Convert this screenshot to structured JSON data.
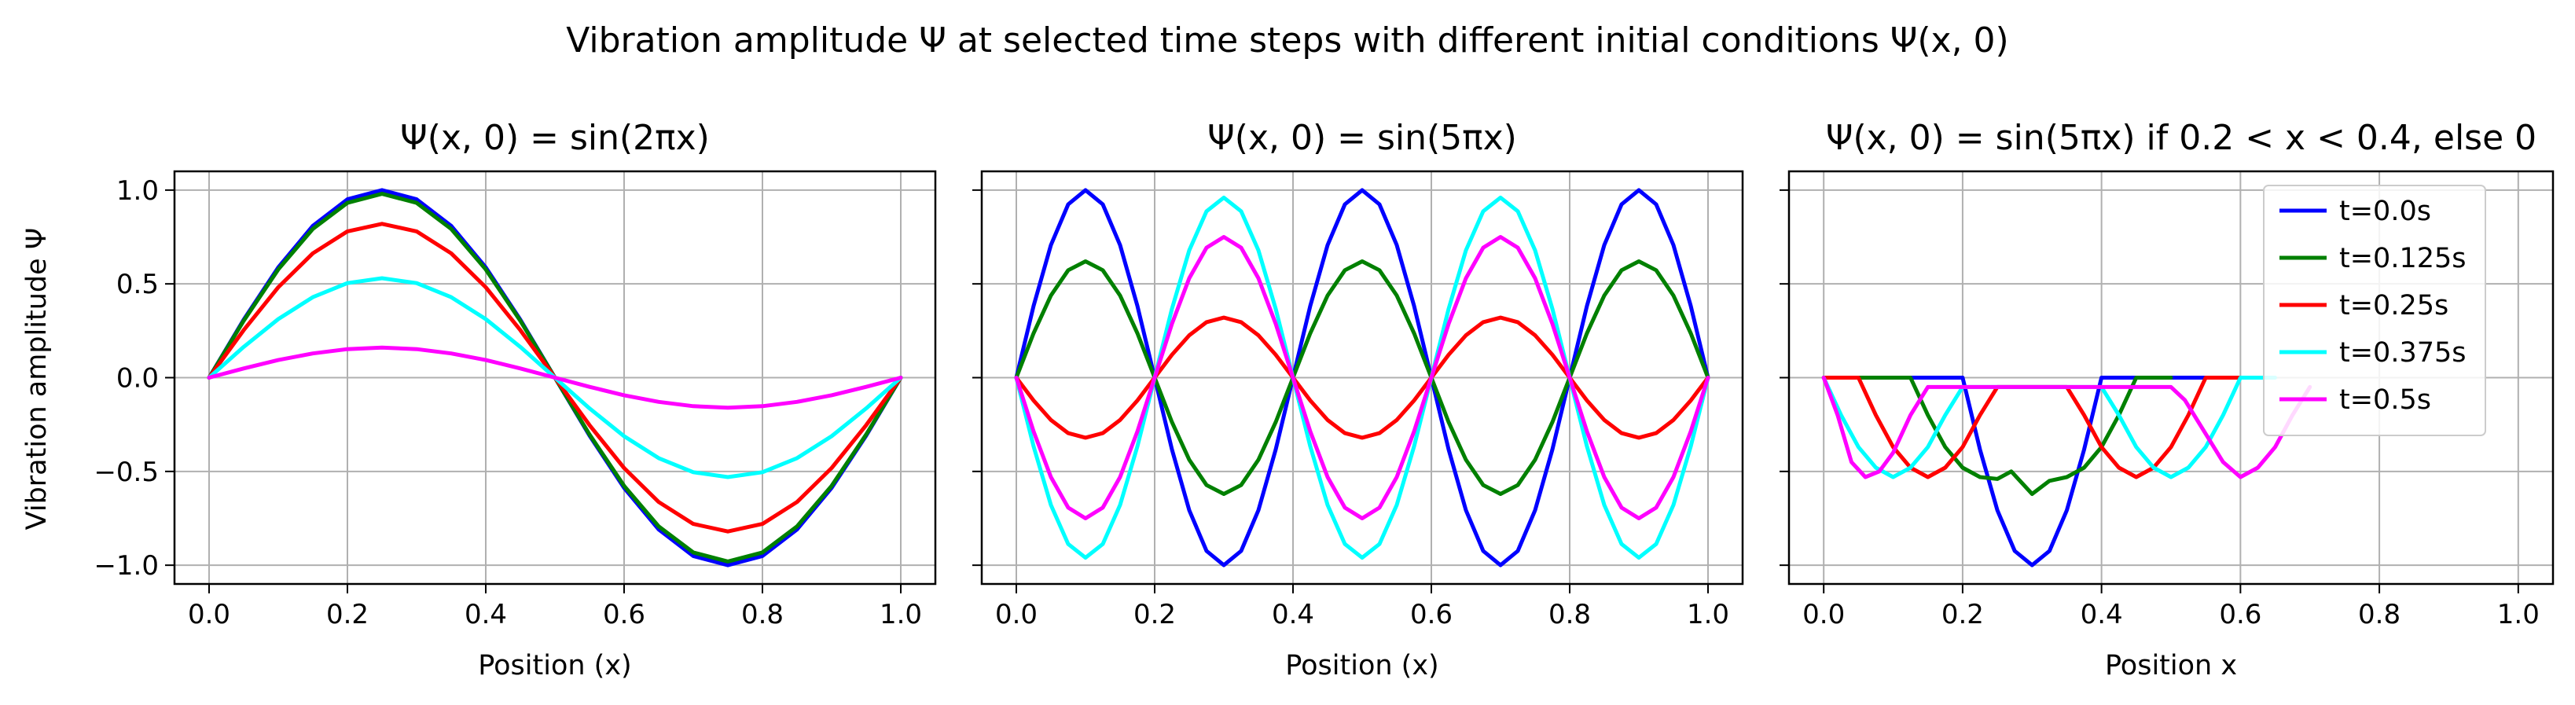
{
  "figure": {
    "suptitle": "Vibration amplitude Ψ at selected time steps with different initial conditions Ψ(x, 0)"
  },
  "legend": {
    "placement": "upper-right of third panel",
    "entries": [
      {
        "label": "t=0.0s",
        "color": "#0000ff"
      },
      {
        "label": "t=0.125s",
        "color": "#008000"
      },
      {
        "label": "t=0.25s",
        "color": "#ff0000"
      },
      {
        "label": "t=0.375s",
        "color": "#00ffff"
      },
      {
        "label": "t=0.5s",
        "color": "#ff00ff"
      }
    ]
  },
  "chart_data": [
    {
      "type": "line",
      "title": "Ψ(x, 0) = sin(2πx)",
      "xlabel": "Position (x)",
      "ylabel": "Vibration amplitude Ψ",
      "xlim": [
        -0.05,
        1.05
      ],
      "ylim": [
        -1.1,
        1.1
      ],
      "xticks": [
        "0.0",
        "0.2",
        "0.4",
        "0.6",
        "0.8",
        "1.0"
      ],
      "yticks": [
        "1.0",
        "0.5",
        "0.0",
        "−0.5",
        "−1.0"
      ],
      "grid": true,
      "x": [
        0.0,
        0.05,
        0.1,
        0.15,
        0.2,
        0.25,
        0.3,
        0.35,
        0.4,
        0.45,
        0.5,
        0.55,
        0.6,
        0.65,
        0.7,
        0.75,
        0.8,
        0.85,
        0.9,
        0.95,
        1.0
      ],
      "series": [
        {
          "name": "t=0.0s",
          "values": [
            0.0,
            0.309,
            0.588,
            0.809,
            0.951,
            1.0,
            0.951,
            0.809,
            0.588,
            0.309,
            0.0,
            -0.309,
            -0.588,
            -0.809,
            -0.951,
            -1.0,
            -0.951,
            -0.809,
            -0.588,
            -0.309,
            0.0
          ]
        },
        {
          "name": "t=0.125s",
          "values": [
            0.0,
            0.303,
            0.577,
            0.793,
            0.932,
            0.98,
            0.932,
            0.793,
            0.577,
            0.303,
            0.0,
            -0.303,
            -0.577,
            -0.793,
            -0.932,
            -0.98,
            -0.932,
            -0.793,
            -0.577,
            -0.303,
            0.0
          ]
        },
        {
          "name": "t=0.25s",
          "values": [
            0.0,
            0.253,
            0.482,
            0.663,
            0.78,
            0.82,
            0.78,
            0.663,
            0.482,
            0.253,
            0.0,
            -0.253,
            -0.482,
            -0.663,
            -0.78,
            -0.82,
            -0.78,
            -0.663,
            -0.482,
            -0.253,
            0.0
          ]
        },
        {
          "name": "t=0.375s",
          "values": [
            0.0,
            0.164,
            0.312,
            0.429,
            0.504,
            0.53,
            0.504,
            0.429,
            0.312,
            0.164,
            0.0,
            -0.164,
            -0.312,
            -0.429,
            -0.504,
            -0.53,
            -0.504,
            -0.429,
            -0.312,
            -0.164,
            0.0
          ]
        },
        {
          "name": "t=0.5s",
          "values": [
            0.0,
            0.049,
            0.094,
            0.129,
            0.152,
            0.16,
            0.152,
            0.129,
            0.094,
            0.049,
            0.0,
            -0.049,
            -0.094,
            -0.129,
            -0.152,
            -0.16,
            -0.152,
            -0.129,
            -0.094,
            -0.049,
            0.0
          ]
        }
      ]
    },
    {
      "type": "line",
      "title": "Ψ(x, 0) = sin(5πx)",
      "xlabel": "Position (x)",
      "ylabel": "",
      "xlim": [
        -0.05,
        1.05
      ],
      "ylim": [
        -1.1,
        1.1
      ],
      "xticks": [
        "0.0",
        "0.2",
        "0.4",
        "0.6",
        "0.8",
        "1.0"
      ],
      "yticks": [],
      "grid": true,
      "x": [
        0.0,
        0.025,
        0.05,
        0.075,
        0.1,
        0.125,
        0.15,
        0.175,
        0.2,
        0.225,
        0.25,
        0.275,
        0.3,
        0.325,
        0.35,
        0.375,
        0.4,
        0.425,
        0.45,
        0.475,
        0.5,
        0.525,
        0.55,
        0.575,
        0.6,
        0.625,
        0.65,
        0.675,
        0.7,
        0.725,
        0.75,
        0.775,
        0.8,
        0.825,
        0.85,
        0.875,
        0.9,
        0.925,
        0.95,
        0.975,
        1.0
      ],
      "series": [
        {
          "name": "t=0.0s",
          "values": [
            0.0,
            0.383,
            0.707,
            0.924,
            1.0,
            0.924,
            0.707,
            0.383,
            0.0,
            -0.383,
            -0.707,
            -0.924,
            -1.0,
            -0.924,
            -0.707,
            -0.383,
            0.0,
            0.383,
            0.707,
            0.924,
            1.0,
            0.924,
            0.707,
            0.383,
            0.0,
            -0.383,
            -0.707,
            -0.924,
            -1.0,
            -0.924,
            -0.707,
            -0.383,
            0.0,
            0.383,
            0.707,
            0.924,
            1.0,
            0.924,
            0.707,
            0.383,
            0.0
          ]
        },
        {
          "name": "t=0.125s",
          "values": [
            0.0,
            0.237,
            0.438,
            0.573,
            0.62,
            0.573,
            0.438,
            0.237,
            0.0,
            -0.237,
            -0.438,
            -0.573,
            -0.62,
            -0.573,
            -0.438,
            -0.237,
            0.0,
            0.237,
            0.438,
            0.573,
            0.62,
            0.573,
            0.438,
            0.237,
            0.0,
            -0.237,
            -0.438,
            -0.573,
            -0.62,
            -0.573,
            -0.438,
            -0.237,
            0.0,
            0.237,
            0.438,
            0.573,
            0.62,
            0.573,
            0.438,
            0.237,
            0.0
          ]
        },
        {
          "name": "t=0.25s",
          "values": [
            0.0,
            -0.122,
            -0.226,
            -0.296,
            -0.32,
            -0.296,
            -0.226,
            -0.122,
            0.0,
            0.122,
            0.226,
            0.296,
            0.32,
            0.296,
            0.226,
            0.122,
            0.0,
            -0.122,
            -0.226,
            -0.296,
            -0.32,
            -0.296,
            -0.226,
            -0.122,
            0.0,
            0.122,
            0.226,
            0.296,
            0.32,
            0.296,
            0.226,
            0.122,
            0.0,
            -0.122,
            -0.226,
            -0.296,
            -0.32,
            -0.296,
            -0.226,
            -0.122,
            0.0
          ]
        },
        {
          "name": "t=0.375s",
          "values": [
            0.0,
            -0.367,
            -0.679,
            -0.887,
            -0.96,
            -0.887,
            -0.679,
            -0.367,
            0.0,
            0.367,
            0.679,
            0.887,
            0.96,
            0.887,
            0.679,
            0.367,
            0.0,
            -0.367,
            -0.679,
            -0.887,
            -0.96,
            -0.887,
            -0.679,
            -0.367,
            0.0,
            0.367,
            0.679,
            0.887,
            0.96,
            0.887,
            0.679,
            0.367,
            0.0,
            -0.367,
            -0.679,
            -0.887,
            -0.96,
            -0.887,
            -0.679,
            -0.367,
            0.0
          ]
        },
        {
          "name": "t=0.5s",
          "values": [
            0.0,
            -0.287,
            -0.53,
            -0.693,
            -0.75,
            -0.693,
            -0.53,
            -0.287,
            0.0,
            0.287,
            0.53,
            0.693,
            0.75,
            0.693,
            0.53,
            0.287,
            0.0,
            -0.287,
            -0.53,
            -0.693,
            -0.75,
            -0.693,
            -0.53,
            -0.287,
            0.0,
            0.287,
            0.53,
            0.693,
            0.75,
            0.693,
            0.53,
            0.287,
            0.0,
            -0.287,
            -0.53,
            -0.693,
            -0.75,
            -0.693,
            -0.53,
            -0.287,
            0.0
          ]
        }
      ]
    },
    {
      "type": "line",
      "title": "Ψ(x, 0) = sin(5πx) if 0.2 < x < 0.4, else 0",
      "xlabel": "Position x",
      "ylabel": "",
      "xlim": [
        -0.05,
        1.05
      ],
      "ylim": [
        -1.1,
        1.1
      ],
      "xticks": [
        "0.0",
        "0.2",
        "0.4",
        "0.6",
        "0.8",
        "1.0"
      ],
      "yticks": [],
      "grid": true,
      "series": [
        {
          "name": "t=0.0s",
          "x": [
            0.0,
            0.2,
            0.225,
            0.25,
            0.275,
            0.3,
            0.325,
            0.35,
            0.375,
            0.4,
            0.6
          ],
          "values": [
            0.0,
            0.0,
            -0.383,
            -0.707,
            -0.924,
            -1.0,
            -0.924,
            -0.707,
            -0.383,
            0.0,
            0.0
          ]
        },
        {
          "name": "t=0.125s",
          "x": [
            0.0,
            0.125,
            0.15,
            0.175,
            0.2,
            0.225,
            0.25,
            0.27,
            0.3,
            0.325,
            0.35,
            0.375,
            0.4,
            0.425,
            0.45,
            0.475,
            0.5
          ],
          "values": [
            0.0,
            0.0,
            -0.2,
            -0.37,
            -0.48,
            -0.53,
            -0.54,
            -0.5,
            -0.62,
            -0.55,
            -0.53,
            -0.48,
            -0.37,
            -0.2,
            0.0,
            0.0,
            0.0
          ]
        },
        {
          "name": "t=0.25s",
          "x": [
            0.0,
            0.05,
            0.075,
            0.1,
            0.125,
            0.15,
            0.175,
            0.2,
            0.225,
            0.25,
            0.275,
            0.3,
            0.325,
            0.35,
            0.375,
            0.4,
            0.425,
            0.45,
            0.475,
            0.5,
            0.525,
            0.55,
            0.6
          ],
          "values": [
            0.0,
            0.0,
            -0.2,
            -0.37,
            -0.48,
            -0.53,
            -0.48,
            -0.37,
            -0.2,
            -0.05,
            -0.05,
            -0.05,
            -0.05,
            -0.05,
            -0.2,
            -0.37,
            -0.48,
            -0.53,
            -0.48,
            -0.37,
            -0.2,
            0.0,
            0.0
          ]
        },
        {
          "name": "t=0.375s",
          "x": [
            0.0,
            0.025,
            0.05,
            0.075,
            0.1,
            0.125,
            0.15,
            0.175,
            0.2,
            0.25,
            0.3,
            0.35,
            0.4,
            0.425,
            0.45,
            0.475,
            0.5,
            0.525,
            0.55,
            0.575,
            0.6,
            0.65
          ],
          "values": [
            0.0,
            -0.2,
            -0.37,
            -0.48,
            -0.53,
            -0.48,
            -0.37,
            -0.2,
            -0.05,
            -0.05,
            -0.05,
            -0.05,
            -0.05,
            -0.2,
            -0.37,
            -0.48,
            -0.53,
            -0.48,
            -0.37,
            -0.2,
            0.0,
            0.0
          ]
        },
        {
          "name": "t=0.5s",
          "x": [
            0.0,
            0.02,
            0.04,
            0.06,
            0.08,
            0.1,
            0.125,
            0.15,
            0.2,
            0.3,
            0.45,
            0.5,
            0.52,
            0.55,
            0.575,
            0.6,
            0.625,
            0.65,
            0.675,
            0.7
          ],
          "values": [
            0.0,
            -0.2,
            -0.45,
            -0.53,
            -0.5,
            -0.4,
            -0.2,
            -0.05,
            -0.05,
            -0.05,
            -0.05,
            -0.05,
            -0.12,
            -0.3,
            -0.45,
            -0.53,
            -0.48,
            -0.37,
            -0.2,
            -0.05
          ]
        }
      ]
    }
  ]
}
